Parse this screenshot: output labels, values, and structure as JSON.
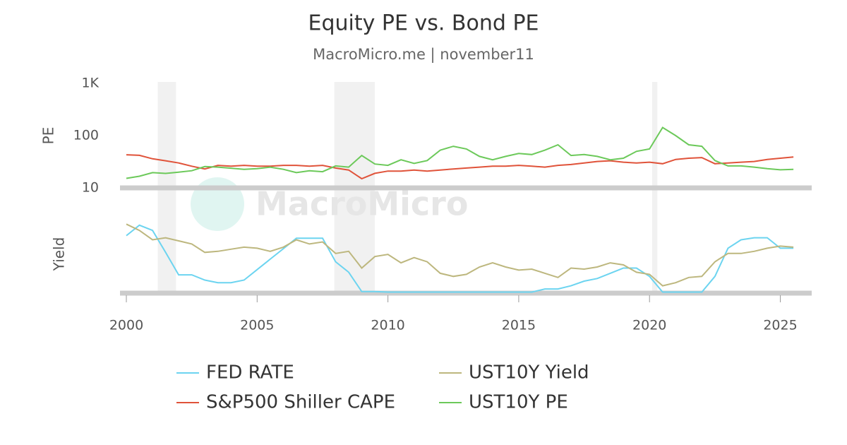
{
  "chart_data": [
    {
      "type": "line",
      "title": "Equity PE vs. Bond PE",
      "subtitle": "MacroMicro.me | november11",
      "watermark": "MacroMicro",
      "ylabel": "PE",
      "log_scale": true,
      "ylim": [
        10,
        1000
      ],
      "yticks": [
        10,
        100,
        {
          "value": 1000,
          "label": "1K"
        }
      ],
      "xlim": [
        2000,
        2026.2
      ],
      "recessions": [
        [
          2001.2,
          2001.9
        ],
        [
          2007.95,
          2009.5
        ],
        [
          2020.1,
          2020.3
        ]
      ],
      "x": [
        2000,
        2000.5,
        2001,
        2001.5,
        2002,
        2002.5,
        2003,
        2003.5,
        2004,
        2004.5,
        2005,
        2005.5,
        2006,
        2006.5,
        2007,
        2007.5,
        2008,
        2008.5,
        2009,
        2009.5,
        2010,
        2010.5,
        2011,
        2011.5,
        2012,
        2012.5,
        2013,
        2013.5,
        2014,
        2014.5,
        2015,
        2015.5,
        2016,
        2016.5,
        2017,
        2017.5,
        2018,
        2018.5,
        2019,
        2019.5,
        2020,
        2020.5,
        2021,
        2021.5,
        2022,
        2022.5,
        2023,
        2023.5,
        2024,
        2024.5,
        2025,
        2025.5
      ],
      "series": [
        {
          "name": "S&P500 Shiller CAPE",
          "color": "#e0533a",
          "values": [
            43,
            42,
            36,
            33,
            30,
            26,
            23,
            27,
            26,
            27,
            26,
            26,
            27,
            27,
            26,
            27,
            24,
            22,
            15,
            19,
            21,
            21,
            22,
            21,
            22,
            23,
            24,
            25,
            26,
            26,
            27,
            26,
            25,
            27,
            28,
            30,
            32,
            33,
            31,
            30,
            31,
            29,
            35,
            37,
            38,
            29,
            30,
            31,
            32,
            35,
            37,
            39
          ]
        },
        {
          "name": "UST10Y PE",
          "color": "#6cc95a",
          "values": [
            15.2,
            16.7,
            19.6,
            18.9,
            20,
            21.3,
            25.6,
            25,
            23.8,
            22.7,
            23.3,
            25,
            22.7,
            19.6,
            21.3,
            20.4,
            26.3,
            25,
            41.7,
            28.6,
            27,
            34.5,
            29.4,
            33.3,
            52.6,
            62.5,
            55.6,
            40,
            34.5,
            40,
            45.5,
            43.5,
            52.6,
            66.7,
            41.7,
            43.5,
            40,
            34.5,
            37,
            50,
            55.6,
            142.9,
            100,
            66.7,
            62.5,
            33.3,
            26.3,
            26.3,
            25,
            23.3,
            22.2,
            22.7
          ]
        }
      ]
    },
    {
      "type": "line",
      "ylabel": "Yield",
      "ylim": [
        0,
        7.5
      ],
      "xlim": [
        2000,
        2026.2
      ],
      "xticks": [
        2000,
        2005,
        2010,
        2015,
        2020,
        2025
      ],
      "x": [
        2000,
        2000.5,
        2001,
        2001.5,
        2002,
        2002.5,
        2003,
        2003.5,
        2004,
        2004.5,
        2005,
        2005.5,
        2006,
        2006.5,
        2007,
        2007.5,
        2008,
        2008.5,
        2009,
        2009.5,
        2010,
        2010.5,
        2011,
        2011.5,
        2012,
        2012.5,
        2013,
        2013.5,
        2014,
        2014.5,
        2015,
        2015.5,
        2016,
        2016.5,
        2017,
        2017.5,
        2018,
        2018.5,
        2019,
        2019.5,
        2020,
        2020.5,
        2021,
        2021.5,
        2022,
        2022.5,
        2023,
        2023.5,
        2024,
        2024.5,
        2025,
        2025.5
      ],
      "series": [
        {
          "name": "FED RATE",
          "color": "#6cd4f0",
          "values": [
            5.5,
            6.5,
            6.0,
            3.9,
            1.75,
            1.75,
            1.25,
            1.0,
            1.0,
            1.25,
            2.25,
            3.25,
            4.25,
            5.25,
            5.25,
            5.25,
            3.0,
            2.0,
            0.15,
            0.15,
            0.1,
            0.1,
            0.1,
            0.1,
            0.1,
            0.1,
            0.1,
            0.1,
            0.1,
            0.1,
            0.1,
            0.1,
            0.4,
            0.4,
            0.7,
            1.15,
            1.4,
            1.9,
            2.4,
            2.4,
            1.6,
            0.1,
            0.1,
            0.1,
            0.1,
            1.6,
            4.3,
            5.1,
            5.3,
            5.3,
            4.3,
            4.3
          ]
        },
        {
          "name": "UST10Y Yield",
          "color": "#bdb77e",
          "values": [
            6.6,
            6.0,
            5.1,
            5.3,
            5.0,
            4.7,
            3.9,
            4.0,
            4.2,
            4.4,
            4.3,
            4.0,
            4.4,
            5.1,
            4.7,
            4.9,
            3.8,
            4.0,
            2.4,
            3.5,
            3.7,
            2.9,
            3.4,
            3.0,
            1.9,
            1.6,
            1.8,
            2.5,
            2.9,
            2.5,
            2.2,
            2.3,
            1.9,
            1.5,
            2.4,
            2.3,
            2.5,
            2.9,
            2.7,
            2.0,
            1.8,
            0.7,
            1.0,
            1.5,
            1.6,
            3.0,
            3.8,
            3.8,
            4.0,
            4.3,
            4.5,
            4.4
          ]
        }
      ]
    }
  ]
}
